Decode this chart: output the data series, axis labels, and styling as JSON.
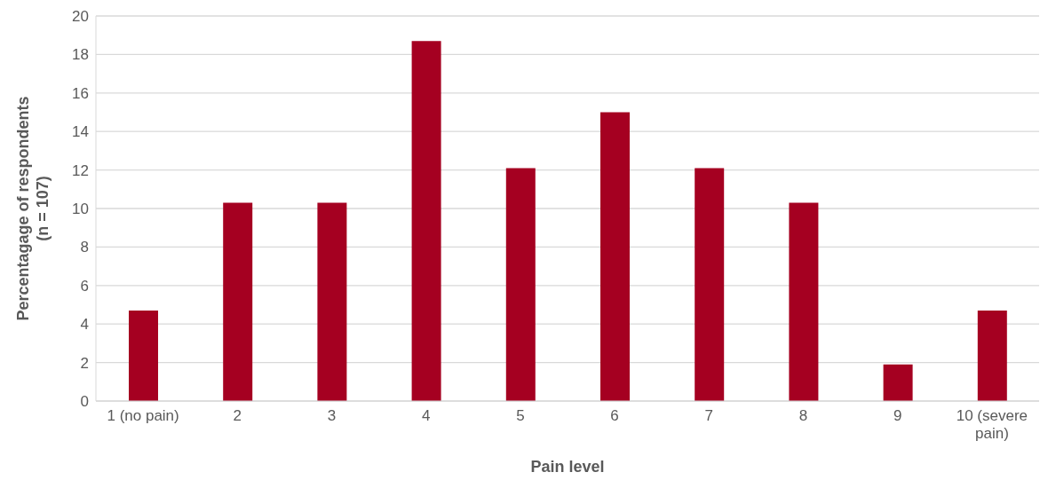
{
  "chart_data": {
    "type": "bar",
    "xlabel": "Pain level",
    "ylabel": "Percentagage of respondents\n(n = 107)",
    "categories": [
      "1 (no pain)",
      "2",
      "3",
      "4",
      "5",
      "6",
      "7",
      "8",
      "9",
      "10 (severe pain)"
    ],
    "values": [
      4.7,
      10.3,
      10.3,
      18.7,
      12.1,
      15.0,
      12.1,
      10.3,
      1.9,
      4.7
    ],
    "color": "#a50021",
    "ylim": [
      0,
      20
    ],
    "yticks": [
      0,
      2,
      4,
      6,
      8,
      10,
      12,
      14,
      16,
      18,
      20
    ],
    "grid": "y"
  }
}
